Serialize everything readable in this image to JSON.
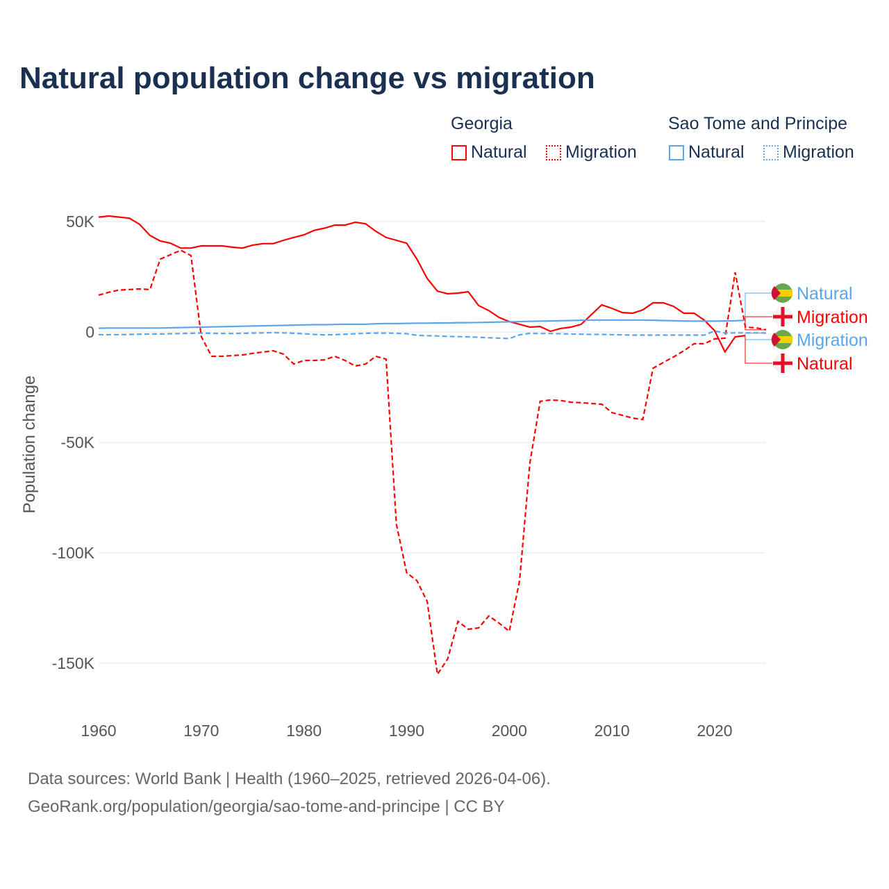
{
  "title": "Natural population change vs migration",
  "legend": {
    "groups": [
      {
        "name": "Georgia",
        "items": [
          "Natural",
          "Migration"
        ]
      },
      {
        "name": "Sao Tome and Principe",
        "items": [
          "Natural",
          "Migration"
        ]
      }
    ]
  },
  "colors": {
    "georgia": "#ff0000",
    "stp": "#5aa5ec"
  },
  "footer": {
    "line1": "Data sources: World Bank | Health (1960–2025, retrieved 2026-04-06).",
    "line2": "GeoRank.org/population/georgia/sao-tome-and-principe | CC BY"
  },
  "chart_data": {
    "type": "line",
    "title": "Natural population change vs migration",
    "xlabel": "",
    "ylabel": "Population change",
    "xlim": [
      1960,
      2025
    ],
    "ylim": [
      -165000,
      60000
    ],
    "xticks": [
      1960,
      1970,
      1980,
      1990,
      2000,
      2010,
      2020
    ],
    "xtick_labels": [
      "1960",
      "1970",
      "1980",
      "1990",
      "2000",
      "2010",
      "2020"
    ],
    "yticks": [
      50000,
      0,
      -50000,
      -100000,
      -150000
    ],
    "ytick_labels": [
      "50K",
      "0",
      "-50K",
      "-100K",
      "-150K"
    ],
    "grid": true,
    "legend_position": "top-right",
    "end_labels": [
      {
        "text": "Natural",
        "series": "Sao Tome and Principe Natural"
      },
      {
        "text": "Migration",
        "series": "Georgia Migration"
      },
      {
        "text": "Migration",
        "series": "Sao Tome and Principe Migration"
      },
      {
        "text": "Natural",
        "series": "Georgia Natural"
      }
    ],
    "series": [
      {
        "name": "Georgia Natural",
        "country": "georgia",
        "dashed": false,
        "start": 1960,
        "values": [
          52000,
          52500,
          52000,
          51500,
          48700,
          43700,
          41200,
          40200,
          38000,
          38000,
          39000,
          39000,
          39000,
          38400,
          38000,
          39300,
          40000,
          40000,
          41500,
          42800,
          44000,
          46000,
          47000,
          48400,
          48400,
          49700,
          49000,
          45600,
          42800,
          41500,
          40200,
          33000,
          24200,
          18500,
          17300,
          17600,
          18200,
          12000,
          9700,
          6600,
          4700,
          3500,
          2200,
          2500,
          300,
          1600,
          2200,
          3500,
          7900,
          12300,
          10700,
          8800,
          8500,
          10000,
          13200,
          13200,
          11600,
          8500,
          8500,
          5300,
          600,
          -9000,
          -2200,
          -1600
        ]
      },
      {
        "name": "Georgia Migration",
        "country": "georgia",
        "dashed": true,
        "start": 1960,
        "values": [
          16700,
          18000,
          19000,
          19200,
          19500,
          19200,
          33000,
          35000,
          37000,
          34600,
          -2000,
          -11000,
          -11000,
          -10700,
          -10400,
          -9700,
          -9100,
          -8500,
          -10000,
          -14500,
          -12900,
          -12900,
          -12600,
          -11000,
          -12900,
          -15400,
          -14500,
          -11000,
          -12300,
          -87000,
          -109000,
          -112600,
          -122000,
          -155000,
          -148000,
          -131000,
          -134600,
          -134000,
          -128600,
          -131800,
          -135500,
          -112600,
          -59400,
          -31400,
          -30800,
          -31000,
          -31800,
          -32000,
          -32400,
          -32700,
          -36500,
          -37700,
          -39000,
          -39600,
          -16400,
          -13800,
          -11300,
          -8500,
          -5300,
          -5300,
          -3100,
          -2800,
          27000,
          2200,
          1900,
          1000
        ]
      },
      {
        "name": "Sao Tome and Principe Natural",
        "country": "stp",
        "dashed": false,
        "start": 1960,
        "values": [
          1700,
          1800,
          1800,
          1800,
          1800,
          1800,
          1800,
          1900,
          2000,
          2100,
          2200,
          2300,
          2400,
          2500,
          2600,
          2700,
          2800,
          2900,
          3000,
          3100,
          3200,
          3300,
          3300,
          3400,
          3500,
          3500,
          3500,
          3700,
          3800,
          3800,
          3900,
          4000,
          4000,
          4100,
          4100,
          4200,
          4200,
          4300,
          4400,
          4500,
          4600,
          4700,
          4800,
          4900,
          5000,
          5100,
          5200,
          5300,
          5400,
          5400,
          5400,
          5400,
          5400,
          5400,
          5300,
          5200,
          5100,
          5000,
          4900,
          4900,
          4900,
          5000,
          5100,
          5300
        ]
      },
      {
        "name": "Sao Tome and Principe Migration",
        "country": "stp",
        "dashed": true,
        "start": 1960,
        "values": [
          -1200,
          -1200,
          -1200,
          -1100,
          -1000,
          -900,
          -900,
          -800,
          -700,
          -600,
          -500,
          -600,
          -700,
          -700,
          -600,
          -500,
          -400,
          -300,
          -400,
          -600,
          -800,
          -1100,
          -1300,
          -1200,
          -1000,
          -800,
          -600,
          -500,
          -500,
          -600,
          -800,
          -1500,
          -1700,
          -1800,
          -2000,
          -2100,
          -2200,
          -2400,
          -2600,
          -2800,
          -3000,
          -1300,
          -600,
          -700,
          -700,
          -800,
          -900,
          -1000,
          -1100,
          -1100,
          -1200,
          -1300,
          -1400,
          -1400,
          -1400,
          -1400,
          -1400,
          -1400,
          -1400,
          -1400,
          500,
          -500,
          -400,
          -400,
          -400,
          -500
        ]
      }
    ]
  }
}
